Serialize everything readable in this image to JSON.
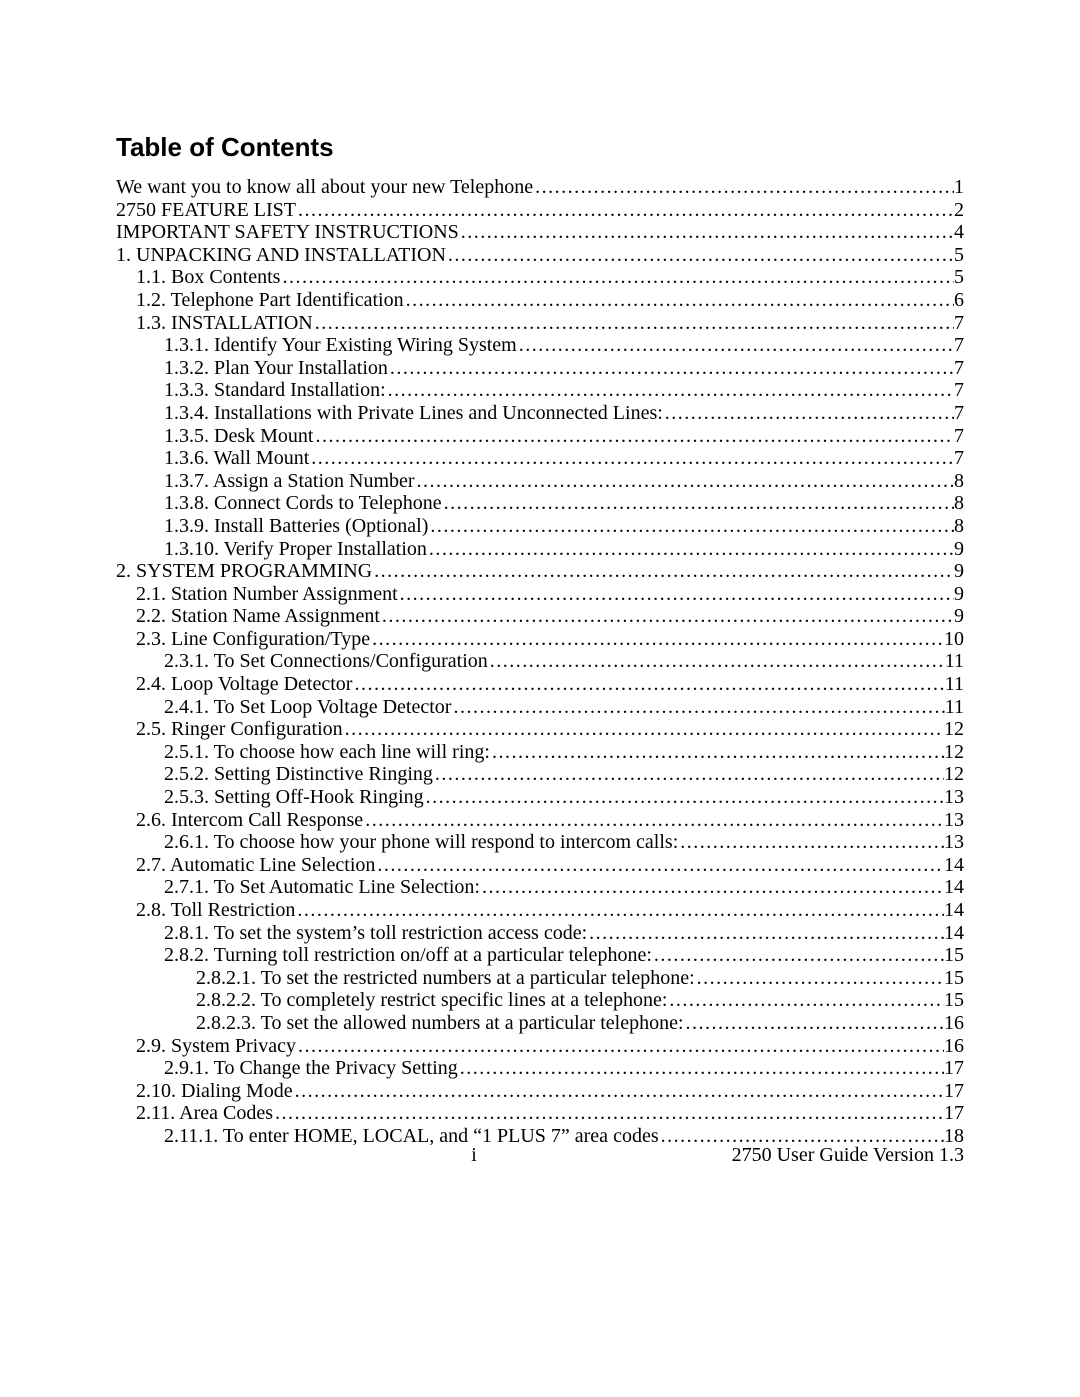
{
  "title": "Table of Contents",
  "footer": {
    "page_roman": "i",
    "doc_version": "2750 User Guide Version 1.3"
  },
  "colors": {
    "text": "#000000",
    "background": "#ffffff"
  },
  "typography": {
    "title_font": "Arial",
    "title_size_pt": 20,
    "title_weight": "bold",
    "body_font": "Times New Roman",
    "body_size_pt": 15,
    "leader_char": "."
  },
  "entries": [
    {
      "indent": 0,
      "label": "We want you to know all about your new Telephone",
      "page": "1"
    },
    {
      "indent": 0,
      "label": "2750 FEATURE LIST",
      "page": "2"
    },
    {
      "indent": 0,
      "label": "IMPORTANT SAFETY INSTRUCTIONS",
      "page": "4"
    },
    {
      "indent": 0,
      "label": "1. UNPACKING AND INSTALLATION",
      "page": "5"
    },
    {
      "indent": 1,
      "label": "1.1. Box Contents",
      "page": "5"
    },
    {
      "indent": 1,
      "label": "1.2. Telephone Part Identification",
      "page": "6"
    },
    {
      "indent": 1,
      "label": "1.3. INSTALLATION",
      "page": "7"
    },
    {
      "indent": 2,
      "label": "1.3.1. Identify Your Existing Wiring System",
      "page": "7"
    },
    {
      "indent": 2,
      "label": "1.3.2. Plan Your Installation",
      "page": "7"
    },
    {
      "indent": 2,
      "label": "1.3.3. Standard Installation:",
      "page": "7"
    },
    {
      "indent": 2,
      "label": "1.3.4. Installations with Private Lines and Unconnected Lines:",
      "page": "7"
    },
    {
      "indent": 2,
      "label": "1.3.5. Desk Mount",
      "page": "7"
    },
    {
      "indent": 2,
      "label": "1.3.6. Wall Mount",
      "page": "7"
    },
    {
      "indent": 2,
      "label": "1.3.7. Assign a Station Number",
      "page": "8"
    },
    {
      "indent": 2,
      "label": "1.3.8. Connect Cords to Telephone",
      "page": "8"
    },
    {
      "indent": 2,
      "label": "1.3.9.  Install Batteries (Optional)",
      "page": "8"
    },
    {
      "indent": 2,
      "label": "1.3.10. Verify Proper Installation",
      "page": "9"
    },
    {
      "indent": 0,
      "label": "2. SYSTEM PROGRAMMING",
      "page": "9"
    },
    {
      "indent": 1,
      "label": "2.1. Station Number Assignment",
      "page": "9"
    },
    {
      "indent": 1,
      "label": "2.2. Station Name Assignment",
      "page": "9"
    },
    {
      "indent": 1,
      "label": "2.3. Line Configuration/Type",
      "page": "10"
    },
    {
      "indent": 2,
      "label": "2.3.1. To Set Connections/Configuration",
      "page": "11"
    },
    {
      "indent": 1,
      "label": "2.4. Loop Voltage Detector",
      "page": "11"
    },
    {
      "indent": 2,
      "label": "2.4.1. To Set Loop Voltage Detector",
      "page": "11"
    },
    {
      "indent": 1,
      "label": "2.5. Ringer Configuration",
      "page": "12"
    },
    {
      "indent": 2,
      "label": "2.5.1. To choose how each line will ring:",
      "page": "12"
    },
    {
      "indent": 2,
      "label": "2.5.2. Setting Distinctive Ringing",
      "page": "12"
    },
    {
      "indent": 2,
      "label": "2.5.3. Setting Off-Hook Ringing",
      "page": "13"
    },
    {
      "indent": 1,
      "label": "2.6. Intercom Call Response",
      "page": "13"
    },
    {
      "indent": 2,
      "label": "2.6.1. To choose how your phone will respond to intercom calls:",
      "page": "13"
    },
    {
      "indent": 1,
      "label": "2.7. Automatic Line Selection",
      "page": "14"
    },
    {
      "indent": 2,
      "label": "2.7.1. To Set Automatic Line Selection:",
      "page": "14"
    },
    {
      "indent": 1,
      "label": "2.8. Toll Restriction",
      "page": "14"
    },
    {
      "indent": 2,
      "label": "2.8.1. To set the system’s toll restriction access code:",
      "page": "14"
    },
    {
      "indent": 2,
      "label": "2.8.2. Turning toll restriction on/off at a particular telephone:",
      "page": "15"
    },
    {
      "indent": 3,
      "label": "2.8.2.1. To set the restricted numbers at a particular telephone:",
      "page": "15"
    },
    {
      "indent": 3,
      "label": "2.8.2.2. To completely restrict specific lines at a telephone:",
      "page": "15"
    },
    {
      "indent": 3,
      "label": "2.8.2.3. To set the allowed numbers at a particular telephone:",
      "page": "16"
    },
    {
      "indent": 1,
      "label": "2.9. System Privacy",
      "page": "16"
    },
    {
      "indent": 2,
      "label": "2.9.1. To Change the Privacy Setting",
      "page": "17"
    },
    {
      "indent": 1,
      "label": "2.10. Dialing Mode",
      "page": "17"
    },
    {
      "indent": 1,
      "label": "2.11. Area Codes",
      "page": "17"
    },
    {
      "indent": 2,
      "label": "2.11.1. To enter HOME, LOCAL, and “1 PLUS 7” area codes",
      "page": "18"
    }
  ]
}
